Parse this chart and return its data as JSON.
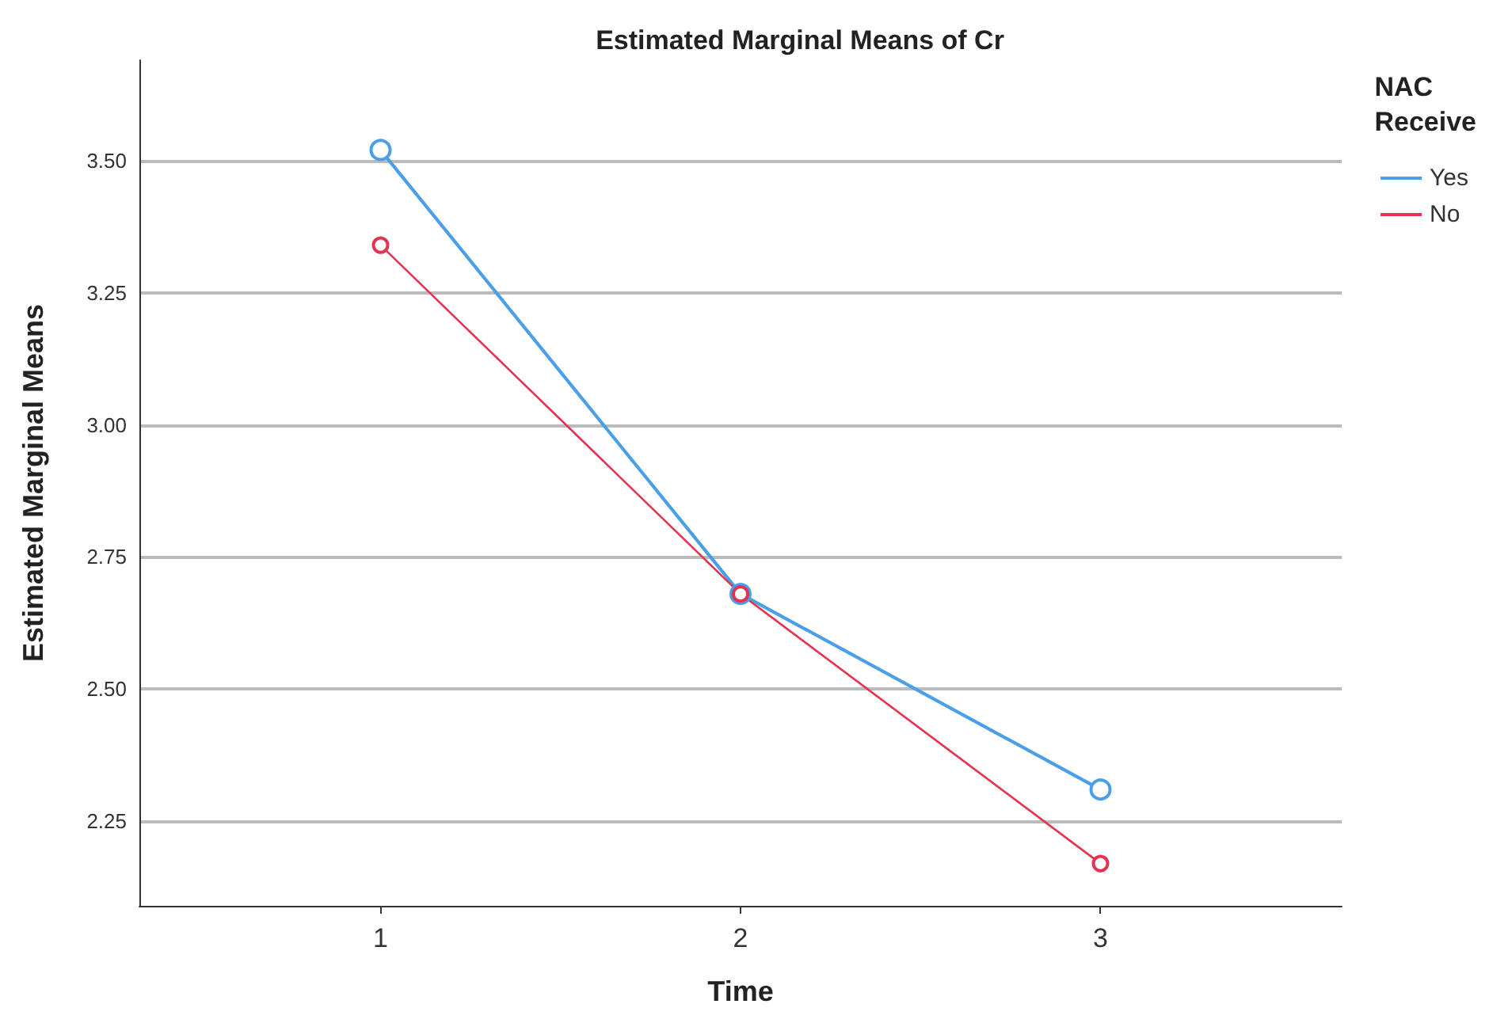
{
  "chart_data": {
    "type": "line",
    "title": "Estimated Marginal Means of Cr",
    "xlabel": "Time",
    "ylabel": "Estimated Marginal Means",
    "legend_title": "NAC Receive",
    "x": [
      1,
      2,
      3
    ],
    "series": [
      {
        "name": "Yes",
        "color": "#4a9fe8",
        "values": [
          3.52,
          2.68,
          2.31
        ]
      },
      {
        "name": "No",
        "color": "#e4324f",
        "values": [
          3.34,
          2.68,
          2.17
        ]
      }
    ],
    "xlim": [
      0.33,
      3.67
    ],
    "xticks": [
      1,
      2,
      3
    ],
    "ylim": [
      2.09,
      3.69
    ],
    "yticks": [
      {
        "value": 2.25,
        "label": "2.25"
      },
      {
        "value": 2.5,
        "label": "2.50"
      },
      {
        "value": 2.75,
        "label": "2.75"
      },
      {
        "value": 3,
        "label": "3.00"
      },
      {
        "value": 3.25,
        "label": "3.25"
      },
      {
        "value": 3.5,
        "label": "3.50"
      }
    ],
    "grid": "y",
    "legend": "top right",
    "marker": "circle",
    "line_style": "solid"
  }
}
